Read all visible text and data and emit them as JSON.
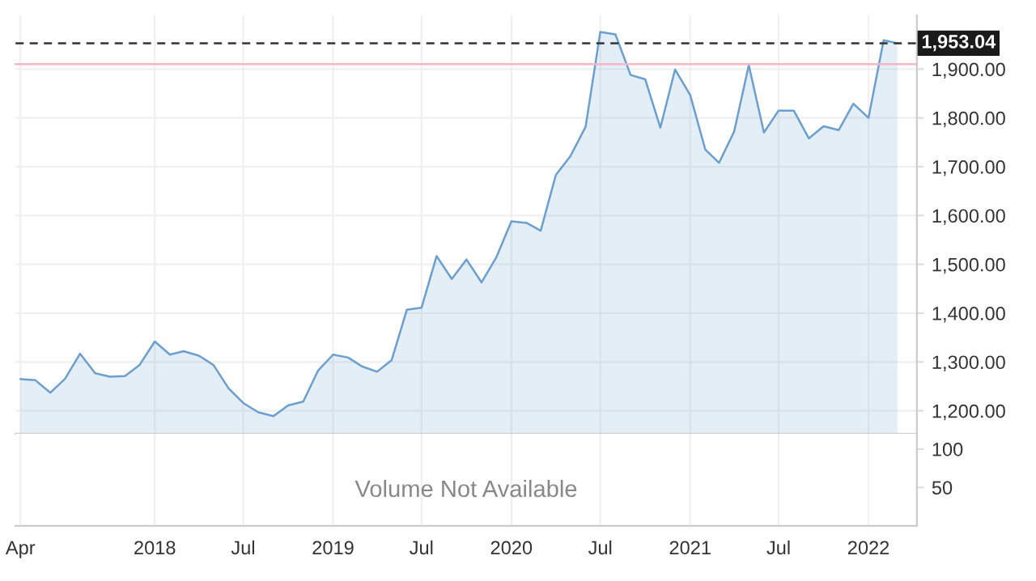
{
  "chart_data": [
    {
      "type": "area",
      "x": [
        "2017-04",
        "2017-05",
        "2017-06",
        "2017-07",
        "2017-08",
        "2017-09",
        "2017-10",
        "2017-11",
        "2017-12",
        "2018-01",
        "2018-02",
        "2018-03",
        "2018-04",
        "2018-05",
        "2018-06",
        "2018-07",
        "2018-08",
        "2018-09",
        "2018-10",
        "2018-11",
        "2018-12",
        "2019-01",
        "2019-02",
        "2019-03",
        "2019-04",
        "2019-05",
        "2019-06",
        "2019-07",
        "2019-08",
        "2019-09",
        "2019-10",
        "2019-11",
        "2019-12",
        "2020-01",
        "2020-02",
        "2020-03",
        "2020-04",
        "2020-05",
        "2020-06",
        "2020-07",
        "2020-08",
        "2020-09",
        "2020-10",
        "2020-11",
        "2020-12",
        "2021-01",
        "2021-02",
        "2021-03",
        "2021-04",
        "2021-05",
        "2021-06",
        "2021-07",
        "2021-08",
        "2021-09",
        "2021-10",
        "2021-11",
        "2021-12",
        "2022-01",
        "2022-02",
        "2022-03"
      ],
      "series": [
        {
          "color": "#6a9fd0",
          "values": [
            1265,
            1263,
            1237,
            1265,
            1317,
            1277,
            1270,
            1271,
            1294,
            1342,
            1315,
            1322,
            1313,
            1294,
            1246,
            1216,
            1197,
            1189,
            1211,
            1219,
            1282,
            1315,
            1309,
            1291,
            1280,
            1304,
            1407,
            1411,
            1517,
            1470,
            1510,
            1463,
            1514,
            1588,
            1585,
            1569,
            1683,
            1722,
            1782,
            1976,
            1971,
            1888,
            1879,
            1780,
            1899,
            1847,
            1735,
            1708,
            1772,
            1908,
            1770,
            1815,
            1815,
            1758,
            1783,
            1775,
            1829,
            1800,
            1959,
            1953.04
          ]
        }
      ],
      "xlim": [
        "2017-03-22",
        "2022-04-10"
      ],
      "ylim": [
        1153,
        2010
      ],
      "yticks": [
        {
          "value": 1200,
          "label": "1,200.00"
        },
        {
          "value": 1300,
          "label": "1,300.00"
        },
        {
          "value": 1400,
          "label": "1,400.00"
        },
        {
          "value": 1500,
          "label": "1,500.00"
        },
        {
          "value": 1600,
          "label": "1,600.00"
        },
        {
          "value": 1700,
          "label": "1,700.00"
        },
        {
          "value": 1800,
          "label": "1,800.00"
        },
        {
          "value": 1900,
          "label": "1,900.00"
        }
      ],
      "xticks": [
        {
          "value": "2017-04",
          "label": null
        },
        {
          "value": "2018-01",
          "label": null
        },
        {
          "value": "2018-07",
          "label": null
        },
        {
          "value": "2019-01",
          "label": null
        },
        {
          "value": "2019-07",
          "label": null
        },
        {
          "value": "2020-01",
          "label": null
        },
        {
          "value": "2020-07",
          "label": null
        },
        {
          "value": "2021-01",
          "label": null
        },
        {
          "value": "2021-07",
          "label": null
        },
        {
          "value": "2022-01",
          "label": null
        }
      ],
      "tick_labels": "y",
      "grid": true,
      "ref_lines": [
        {
          "axis": "y",
          "value": 1953.04,
          "label": "1,953.04",
          "line_style": "dashed",
          "color": "#333333"
        },
        {
          "axis": "y",
          "value": 1910,
          "color": "#f4b6c2",
          "line_style": "solid"
        }
      ]
    },
    {
      "type": "bar",
      "annotations": [
        "Volume Not Available"
      ],
      "xlim": [
        "2017-03-22",
        "2022-04-10"
      ],
      "ylim": [
        0,
        120
      ],
      "yticks": [
        50,
        100
      ],
      "xticks": [
        {
          "value": "2017-04",
          "label": "Apr"
        },
        {
          "value": "2018-01",
          "label": "2018"
        },
        {
          "value": "2018-07",
          "label": "Jul"
        },
        {
          "value": "2019-01",
          "label": "2019"
        },
        {
          "value": "2019-07",
          "label": "Jul"
        },
        {
          "value": "2020-01",
          "label": "2020"
        },
        {
          "value": "2020-07",
          "label": "Jul"
        },
        {
          "value": "2021-01",
          "label": "2021"
        },
        {
          "value": "2021-07",
          "label": "Jul"
        },
        {
          "value": "2022-01",
          "label": "2022"
        }
      ],
      "grid": "x"
    }
  ]
}
